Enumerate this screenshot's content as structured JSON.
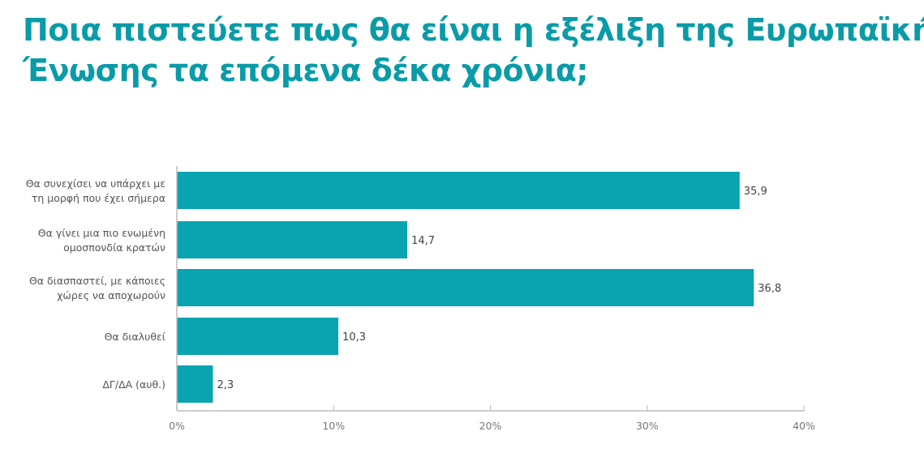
{
  "chart_data": {
    "type": "bar",
    "orientation": "horizontal",
    "title_lines": [
      "Ποια πιστεύετε πως θα είναι η εξέλιξη της Ευρωπαϊκής",
      "Ένωσης τα επόμενα δέκα χρόνια;"
    ],
    "categories": [
      [
        "Θα συνεχίσει να υπάρχει με",
        "τη μορφή που έχει σήμερα"
      ],
      [
        "Θα γίνει μια πιο ενωμένη",
        "ομοσπονδία κρατών"
      ],
      [
        "Θα διασπαστεί, με κάποιες",
        "χώρες να αποχωρούν"
      ],
      [
        "Θα διαλυθεί"
      ],
      [
        "ΔΓ/ΔΑ (αυθ.)"
      ]
    ],
    "values": [
      35.9,
      14.7,
      36.8,
      10.3,
      2.3
    ],
    "value_labels": [
      "35,9",
      "14,7",
      "36,8",
      "10,3",
      "2,3"
    ],
    "xlim": [
      0,
      40
    ],
    "xticks": [
      0,
      10,
      20,
      30,
      40
    ],
    "xtick_labels": [
      "0%",
      "10%",
      "20%",
      "30%",
      "40%"
    ],
    "grid": false,
    "legend": "none",
    "colors": {
      "bar": "#0aa3b0",
      "title": "#0a9ba8",
      "axis": "#bbbbbb"
    }
  }
}
